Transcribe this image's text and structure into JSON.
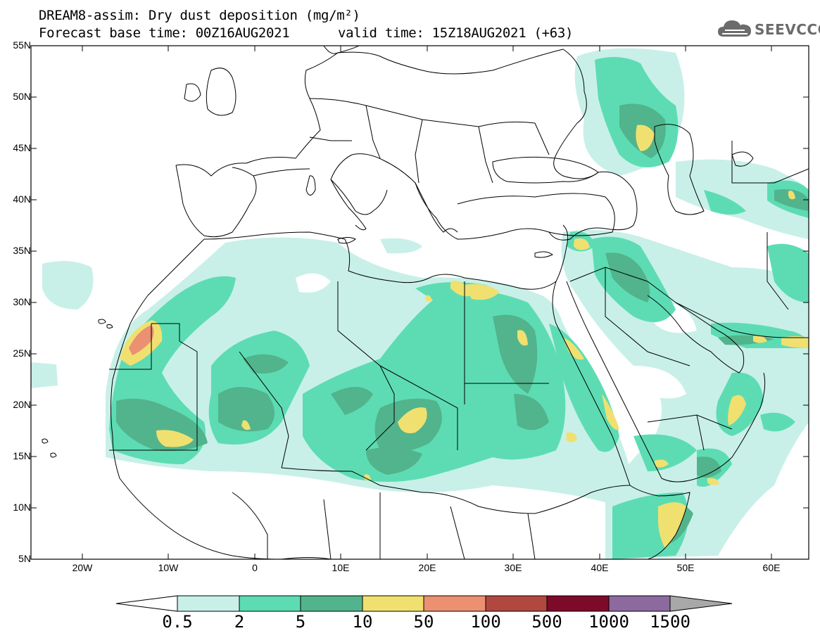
{
  "header": {
    "title": "DREAM8-assim: Dry dust deposition (mg/m²)",
    "forecast_base": "Forecast base time: 00Z16AUG2021",
    "valid_time": "valid time: 15Z18AUG2021 (+63)"
  },
  "logo": {
    "text": "SEEVCCC",
    "icon": "cloud-icon"
  },
  "map": {
    "lat_labels": [
      "55N",
      "50N",
      "45N",
      "40N",
      "35N",
      "30N",
      "25N",
      "20N",
      "15N",
      "10N",
      "5N"
    ],
    "lon_labels": [
      "20W",
      "10W",
      "0",
      "10E",
      "20E",
      "30E",
      "40E",
      "50E",
      "60E"
    ],
    "extent": {
      "lon": [
        -25,
        65
      ],
      "lat": [
        5,
        55
      ]
    }
  },
  "colorbar": {
    "levels": [
      "0.5",
      "2",
      "5",
      "10",
      "50",
      "100",
      "500",
      "1000",
      "1500"
    ],
    "colors": [
      "#ffffff",
      "#c8f0e8",
      "#5ddcb4",
      "#52b48c",
      "#f0e070",
      "#eb9070",
      "#b04840",
      "#7c0a28",
      "#8c6aa0",
      "#a8a8a8"
    ]
  }
}
